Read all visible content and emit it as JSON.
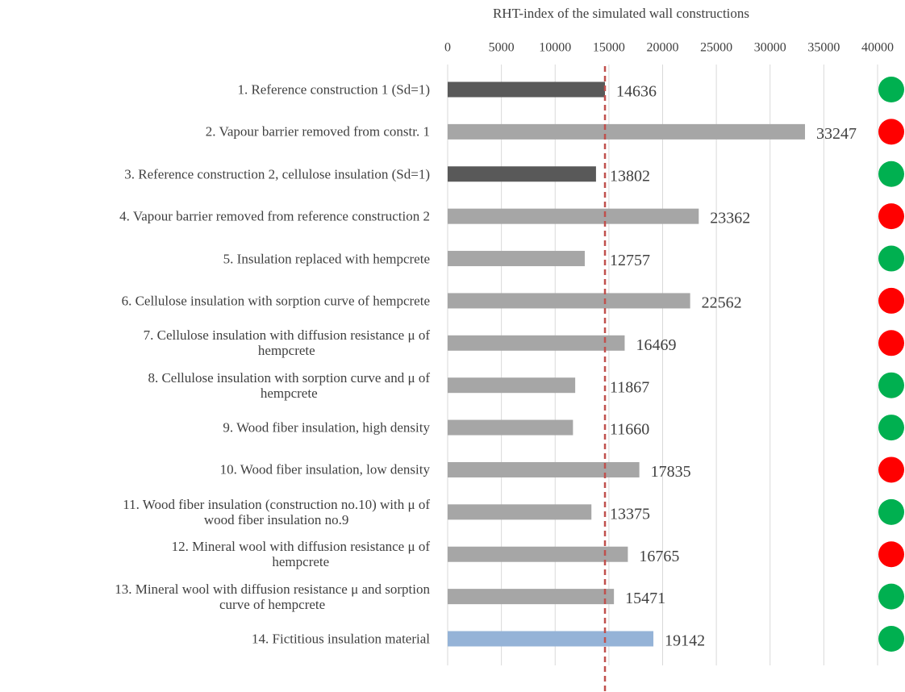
{
  "chart_data": {
    "type": "bar",
    "orientation": "horizontal",
    "title": "RHT-index of the simulated wall constructions",
    "categories": [
      "1. Reference construction 1 (Sd=1)",
      "2. Vapour barrier removed from constr. 1",
      "3. Reference construction 2, cellulose insulation (Sd=1)",
      "4. Vapour barrier removed from reference construction 2",
      "5. Insulation replaced with hempcrete",
      "6. Cellulose insulation with sorption curve of hempcrete",
      "7. Cellulose insulation with diffusion resistance μ of\nhempcrete",
      "8. Cellulose insulation with sorption curve and μ of\nhempcrete",
      "9. Wood fiber insulation, high density",
      "10. Wood fiber insulation, low density",
      "11. Wood fiber insulation (construction no.10) with μ of\nwood fiber insulation no.9",
      "12. Mineral wool  with diffusion resistance μ of\nhempcrete",
      "13. Mineral wool  with diffusion resistance μ and sorption\ncurve of hempcrete",
      "14. Fictitious insulation material"
    ],
    "values": [
      14636,
      33247,
      13802,
      23362,
      12757,
      22562,
      16469,
      11867,
      11660,
      17835,
      13375,
      16765,
      15471,
      19142
    ],
    "colors": [
      "#595959",
      "#a6a6a6",
      "#595959",
      "#a6a6a6",
      "#a6a6a6",
      "#a6a6a6",
      "#a6a6a6",
      "#a6a6a6",
      "#a6a6a6",
      "#a6a6a6",
      "#a6a6a6",
      "#a6a6a6",
      "#a6a6a6",
      "#95b3d7"
    ],
    "status_colors": [
      "#00b050",
      "#ff0000",
      "#00b050",
      "#ff0000",
      "#00b050",
      "#ff0000",
      "#ff0000",
      "#00b050",
      "#00b050",
      "#ff0000",
      "#00b050",
      "#ff0000",
      "#00b050",
      "#00b050"
    ],
    "reference_line": {
      "value": 14636,
      "color": "#c0504d"
    },
    "xlim": [
      0,
      40000
    ],
    "xticks": [
      0,
      5000,
      10000,
      15000,
      20000,
      25000,
      30000,
      35000,
      40000
    ],
    "grid": true
  }
}
